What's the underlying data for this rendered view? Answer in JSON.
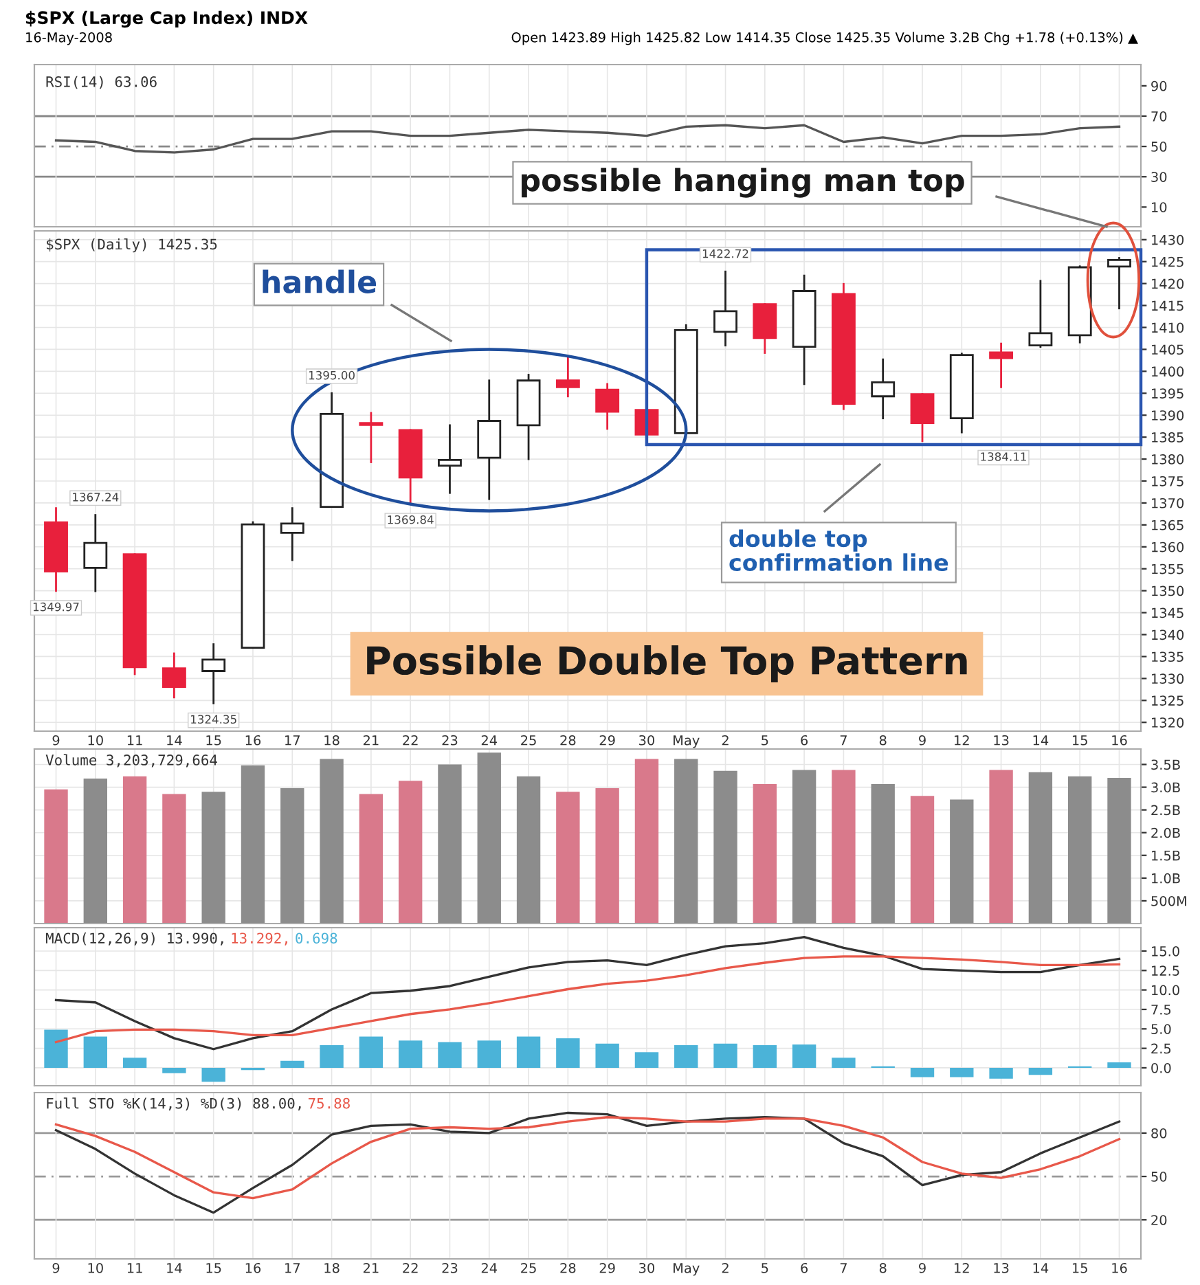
{
  "chart_data": [
    {
      "type": "line",
      "title": "$SPX (Large Cap Index) INDX",
      "subtitle": "16-May-2008",
      "annotations": [
        "Open 1423.89 High 1425.82 Low 1414.35 Close 1425.35 Volume 3.2B Chg +1.78 (+0.13%) ▲",
        "RSI(14) 63.06"
      ],
      "categories": [
        null,
        null,
        null,
        null,
        null,
        null,
        null,
        null,
        null,
        null,
        null,
        null,
        null,
        null,
        null,
        null,
        null,
        null,
        null,
        null,
        null,
        null,
        null,
        null,
        null,
        null,
        null,
        null
      ],
      "series": [
        {
          "color": "#555555",
          "values": [
            54,
            53,
            47,
            46,
            48,
            55,
            55,
            60,
            60,
            57,
            57,
            59,
            61,
            60,
            59,
            57,
            63,
            64,
            62,
            64,
            53,
            56,
            52,
            57,
            57,
            58,
            62,
            63.06
          ]
        }
      ],
      "ylim": [
        -3,
        104
      ],
      "yticks": [
        10,
        30,
        50,
        70,
        90
      ],
      "ref_lines": [
        {
          "axis": "y",
          "value": 70,
          "color": "#888888",
          "line_style": "solid"
        },
        {
          "axis": "y",
          "value": 50,
          "color": "#888888",
          "line_style": "dashed"
        },
        {
          "axis": "y",
          "value": 30,
          "color": "#888888",
          "line_style": "solid"
        }
      ],
      "grid": "x",
      "tick_labels": "y"
    },
    {
      "type": "candlestick",
      "annotations": [
        "$SPX (Daily) 1425.35",
        "1384.11",
        {
          "text": "1349.97",
          "x": "9",
          "y": 1349.97
        },
        {
          "text": "1367.24",
          "x": "10",
          "y": 1367.24
        },
        {
          "text": "1324.35",
          "x": "15",
          "y": 1324.35
        },
        {
          "text": "1395.00",
          "x": "18",
          "y": 1395.0
        },
        {
          "text": "1369.84",
          "x": "22",
          "y": 1369.84
        },
        {
          "text": "1422.72",
          "x": "2",
          "y": 1422.72
        },
        "handle",
        "double top\nconfirmation line",
        "Possible Double Top Pattern",
        "possible hanging man top"
      ],
      "categories": [
        "9",
        "10",
        "11",
        "14",
        "15",
        "16",
        "17",
        "18",
        "21",
        "22",
        "23",
        "24",
        "25",
        "28",
        "29",
        "30",
        "May",
        "2",
        "5",
        "6",
        "7",
        "8",
        "9",
        "12",
        "13",
        "14",
        "15",
        "16"
      ],
      "ohlc": [
        [
          1365.6,
          1368.8,
          1349.97,
          1354.4
        ],
        [
          1355.2,
          1367.24,
          1349.9,
          1360.9
        ],
        [
          1358.3,
          1358.3,
          1331.0,
          1332.6
        ],
        [
          1332.3,
          1335.7,
          1325.7,
          1328.1
        ],
        [
          1331.7,
          1337.8,
          1324.35,
          1334.3
        ],
        [
          1337.0,
          1365.6,
          1337.0,
          1365.1
        ],
        [
          1363.2,
          1368.8,
          1357.0,
          1365.3
        ],
        [
          1369.1,
          1395.0,
          1369.1,
          1390.3
        ],
        [
          1388.2,
          1390.5,
          1379.3,
          1387.8
        ],
        [
          1386.6,
          1386.6,
          1369.84,
          1375.8
        ],
        [
          1378.5,
          1387.7,
          1372.3,
          1379.8
        ],
        [
          1380.3,
          1397.9,
          1370.9,
          1388.7
        ],
        [
          1387.7,
          1399.2,
          1380.0,
          1397.9
        ],
        [
          1397.9,
          1403.4,
          1394.3,
          1396.4
        ],
        [
          1395.8,
          1397.1,
          1386.9,
          1390.8
        ],
        [
          1391.2,
          1391.4,
          1385.3,
          1385.6
        ],
        [
          1385.9,
          1410.5,
          1385.9,
          1409.4
        ],
        [
          1409.0,
          1422.72,
          1405.9,
          1413.7
        ],
        [
          1415.3,
          1415.3,
          1404.2,
          1407.6
        ],
        [
          1405.6,
          1421.8,
          1397.1,
          1418.3
        ],
        [
          1417.6,
          1419.9,
          1391.4,
          1392.6
        ],
        [
          1394.3,
          1402.7,
          1389.3,
          1397.5
        ],
        [
          1394.8,
          1394.8,
          1384.11,
          1388.2
        ],
        [
          1389.3,
          1404.0,
          1386.1,
          1403.7
        ],
        [
          1404.3,
          1406.3,
          1396.4,
          1403.0
        ],
        [
          1405.9,
          1420.6,
          1405.6,
          1408.7
        ],
        [
          1408.2,
          1423.9,
          1406.6,
          1423.7
        ],
        [
          1423.89,
          1425.82,
          1414.35,
          1425.35
        ]
      ],
      "colors": [
        "#e8203c",
        "#ffffff",
        "#e8203c",
        "#e8203c",
        "#ffffff",
        "#ffffff",
        "#ffffff",
        "#ffffff",
        "#e8203c",
        "#e8203c",
        "#ffffff",
        "#ffffff",
        "#ffffff",
        "#e8203c",
        "#e8203c",
        "#e8203c",
        "#ffffff",
        "#ffffff",
        "#e8203c",
        "#ffffff",
        "#e8203c",
        "#ffffff",
        "#e8203c",
        "#ffffff",
        "#e8203c",
        "#ffffff",
        "#ffffff",
        "#ffffff"
      ],
      "ylim": [
        1318,
        1432
      ],
      "yticks": [
        1320,
        1325,
        1330,
        1335,
        1340,
        1345,
        1350,
        1355,
        1360,
        1365,
        1370,
        1375,
        1380,
        1385,
        1390,
        1395,
        1400,
        1405,
        1410,
        1415,
        1420,
        1425,
        1430
      ],
      "grid": true
    },
    {
      "type": "bar",
      "annotations": [
        "Volume 3,203,729,664"
      ],
      "categories": [
        null,
        null,
        null,
        null,
        null,
        null,
        null,
        null,
        null,
        null,
        null,
        null,
        null,
        null,
        null,
        null,
        null,
        null,
        null,
        null,
        null,
        null,
        null,
        null,
        null,
        null,
        null,
        null
      ],
      "values": [
        2950000000,
        3190000000,
        3240000000,
        2850000000,
        2900000000,
        3480000000,
        2980000000,
        3620000000,
        2850000000,
        3140000000,
        3500000000,
        3760000000,
        3240000000,
        2900000000,
        2980000000,
        3620000000,
        3620000000,
        3360000000,
        3070000000,
        3380000000,
        3380000000,
        3070000000,
        2810000000,
        2730000000,
        3380000000,
        3330000000,
        3240000000,
        3203729664
      ],
      "colors": [
        "#d9798b",
        "#8c8c8c",
        "#d9798b",
        "#d9798b",
        "#8c8c8c",
        "#8c8c8c",
        "#8c8c8c",
        "#8c8c8c",
        "#d9798b",
        "#d9798b",
        "#8c8c8c",
        "#8c8c8c",
        "#8c8c8c",
        "#d9798b",
        "#d9798b",
        "#d9798b",
        "#8c8c8c",
        "#8c8c8c",
        "#d9798b",
        "#8c8c8c",
        "#d9798b",
        "#8c8c8c",
        "#d9798b",
        "#8c8c8c",
        "#d9798b",
        "#8c8c8c",
        "#8c8c8c",
        "#8c8c8c"
      ],
      "ylim": [
        0,
        3840000000
      ],
      "yticks": [
        {
          "value": 500000000,
          "label": "500M"
        },
        {
          "value": 1000000000,
          "label": "1.0B"
        },
        {
          "value": 1500000000,
          "label": "1.5B"
        },
        {
          "value": 2000000000,
          "label": "2.0B"
        },
        {
          "value": 2500000000,
          "label": "2.5B"
        },
        {
          "value": 3000000000,
          "label": "3.0B"
        },
        {
          "value": 3500000000,
          "label": "3.5B"
        }
      ],
      "grid": true,
      "tick_labels": "y"
    },
    {
      "type": "line",
      "annotations": [
        "MACD(12,26,9) 13.990,",
        "13.292,",
        "0.698"
      ],
      "categories": [
        null,
        null,
        null,
        null,
        null,
        null,
        null,
        null,
        null,
        null,
        null,
        null,
        null,
        null,
        null,
        null,
        null,
        null,
        null,
        null,
        null,
        null,
        null,
        null,
        null,
        null,
        null,
        null
      ],
      "series": [
        {
          "color": "#333333",
          "values": [
            8.7,
            8.4,
            6.0,
            3.8,
            2.4,
            3.8,
            4.7,
            7.5,
            9.6,
            9.9,
            10.5,
            11.7,
            12.9,
            13.6,
            13.8,
            13.2,
            14.5,
            15.6,
            16.0,
            16.8,
            15.4,
            14.4,
            12.7,
            12.5,
            12.3,
            12.3,
            13.2,
            13.99
          ]
        },
        {
          "color": "#e8584a",
          "values": [
            3.3,
            4.7,
            4.9,
            4.9,
            4.7,
            4.2,
            4.2,
            5.1,
            6.0,
            6.9,
            7.5,
            8.3,
            9.2,
            10.1,
            10.8,
            11.2,
            11.9,
            12.8,
            13.5,
            14.1,
            14.3,
            14.3,
            14.1,
            13.9,
            13.6,
            13.2,
            13.2,
            13.29
          ]
        },
        {
          "type": "bar",
          "color": "#4bb3d8",
          "values": [
            4.9,
            4.0,
            1.3,
            -0.7,
            -1.8,
            -0.3,
            0.9,
            2.9,
            4.0,
            3.5,
            3.3,
            3.5,
            4.0,
            3.8,
            3.1,
            2.0,
            2.9,
            3.1,
            2.9,
            3.0,
            1.3,
            0.2,
            -1.2,
            -1.2,
            -1.4,
            -0.9,
            0.2,
            0.698
          ]
        }
      ],
      "ylim": [
        -2.3,
        18
      ],
      "yticks": [
        {
          "value": 0,
          "label": "0.0"
        },
        2.5,
        {
          "value": 5,
          "label": "5.0"
        },
        7.5,
        {
          "value": 10,
          "label": "10.0"
        },
        12.5,
        {
          "value": 15,
          "label": "15.0"
        }
      ],
      "grid": true,
      "tick_labels": "y"
    },
    {
      "type": "line",
      "annotations": [
        "Full STO %K(14,3) %D(3) 88.00,",
        "75.88"
      ],
      "categories": [
        "9",
        "10",
        "11",
        "14",
        "15",
        "16",
        "17",
        "18",
        "21",
        "22",
        "23",
        "24",
        "25",
        "28",
        "29",
        "30",
        "May",
        "2",
        "5",
        "6",
        "7",
        "8",
        "9",
        "12",
        "13",
        "14",
        "15",
        "16"
      ],
      "series": [
        {
          "color": "#333333",
          "values": [
            82,
            69,
            52,
            37,
            25,
            42,
            58,
            79,
            85,
            86,
            81,
            80,
            90,
            94,
            93,
            85,
            88,
            90,
            91,
            90,
            73,
            64,
            44,
            51,
            53,
            66,
            77,
            88.0
          ]
        },
        {
          "color": "#e8584a",
          "values": [
            86,
            78,
            67,
            53,
            39,
            35,
            41,
            59,
            74,
            83,
            84,
            83,
            84,
            88,
            91,
            90,
            88,
            88,
            90,
            90,
            85,
            77,
            60,
            52,
            49,
            55,
            64,
            75.88
          ]
        }
      ],
      "ylim": [
        -7,
        108
      ],
      "yticks": [
        20,
        50,
        80
      ],
      "ref_lines": [
        {
          "axis": "y",
          "value": 80,
          "color": "#999999",
          "line_style": "solid"
        },
        {
          "axis": "y",
          "value": 50,
          "color": "#999999",
          "line_style": "dashed"
        },
        {
          "axis": "y",
          "value": 20,
          "color": "#999999",
          "line_style": "solid"
        }
      ],
      "grid": "x"
    }
  ]
}
